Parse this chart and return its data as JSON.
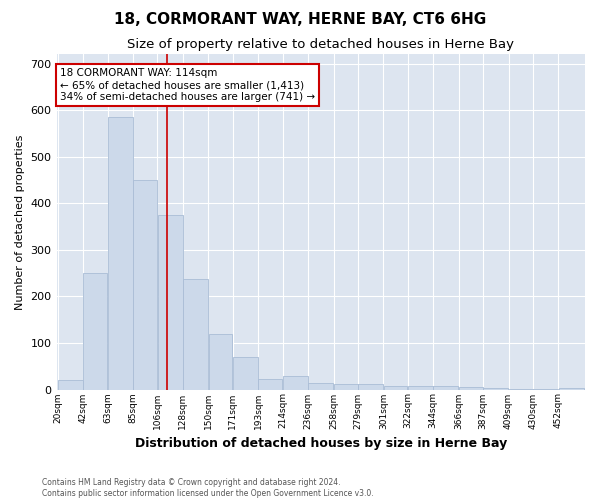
{
  "title": "18, CORMORANT WAY, HERNE BAY, CT6 6HG",
  "subtitle": "Size of property relative to detached houses in Herne Bay",
  "xlabel": "Distribution of detached houses by size in Herne Bay",
  "ylabel": "Number of detached properties",
  "bar_color": "#ccd9ea",
  "bar_edge_color": "#aabdd6",
  "background_color": "#dde5f0",
  "grid_color": "#ffffff",
  "categories": [
    "20sqm",
    "42sqm",
    "63sqm",
    "85sqm",
    "106sqm",
    "128sqm",
    "150sqm",
    "171sqm",
    "193sqm",
    "214sqm",
    "236sqm",
    "258sqm",
    "279sqm",
    "301sqm",
    "322sqm",
    "344sqm",
    "366sqm",
    "387sqm",
    "409sqm",
    "430sqm",
    "452sqm"
  ],
  "values": [
    20,
    250,
    585,
    450,
    375,
    237,
    120,
    70,
    22,
    30,
    15,
    12,
    11,
    7,
    8,
    7,
    5,
    4,
    2,
    1,
    3
  ],
  "bin_edges": [
    20,
    42,
    63,
    85,
    106,
    128,
    150,
    171,
    193,
    214,
    236,
    258,
    279,
    301,
    322,
    344,
    366,
    387,
    409,
    430,
    452,
    474
  ],
  "ylim": [
    0,
    720
  ],
  "yticks": [
    0,
    100,
    200,
    300,
    400,
    500,
    600,
    700
  ],
  "property_size": 114,
  "red_line_color": "#cc0000",
  "annotation_text": "18 CORMORANT WAY: 114sqm\n← 65% of detached houses are smaller (1,413)\n34% of semi-detached houses are larger (741) →",
  "annotation_box_color": "#ffffff",
  "annotation_box_edge": "#cc0000",
  "footer_line1": "Contains HM Land Registry data © Crown copyright and database right 2024.",
  "footer_line2": "Contains public sector information licensed under the Open Government Licence v3.0."
}
